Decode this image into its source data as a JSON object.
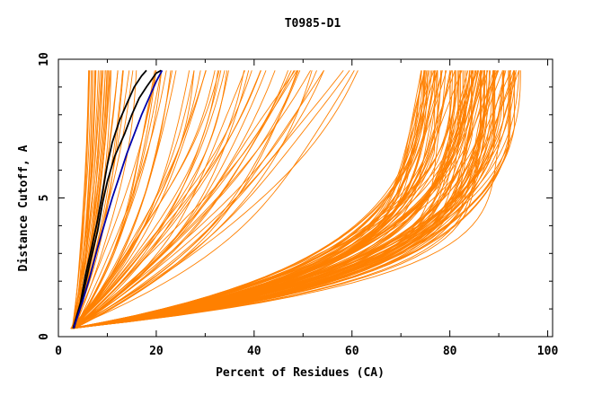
{
  "chart_data": {
    "type": "line",
    "title": "T0985-D1",
    "xlabel": "Percent of Residues (CA)",
    "ylabel": "Distance Cutoff, A",
    "xlim": [
      0,
      101
    ],
    "ylim": [
      0,
      10
    ],
    "xticks": [
      0,
      20,
      40,
      60,
      80,
      100
    ],
    "yticks": [
      0,
      5,
      10
    ],
    "colors": {
      "orange": "#ff8000",
      "black": "#000000",
      "blue": "#0000aa"
    },
    "series_groups": [
      {
        "name": "steep-cluster",
        "color": "orange",
        "count": 22,
        "start_x": [
          2.8,
          3.6
        ],
        "end_x": [
          6,
          11
        ],
        "curve": [
          1.2,
          2.0
        ]
      },
      {
        "name": "mid-fan",
        "color": "orange",
        "count": 55,
        "start_x": [
          2.5,
          3.5
        ],
        "end_x": [
          12,
          62
        ],
        "curve": [
          0.8,
          2.0
        ]
      },
      {
        "name": "flat-bundle",
        "color": "orange",
        "count": 110,
        "start_x": [
          2.5,
          3.2
        ],
        "end_x": [
          74,
          95
        ],
        "curve": [
          3.5,
          5.5
        ]
      }
    ],
    "highlighted_series": [
      {
        "name": "black-1",
        "color": "black",
        "x": [
          3.0,
          4.5,
          5.5,
          6.8,
          8.0,
          9.0,
          10.0,
          11.0,
          12.5,
          14.0,
          15.5,
          17.0,
          18.0
        ],
        "y": [
          0.3,
          1.2,
          2.2,
          3.2,
          4.2,
          5.2,
          6.2,
          7.0,
          7.8,
          8.4,
          9.0,
          9.4,
          9.6
        ]
      },
      {
        "name": "black-2",
        "color": "black",
        "x": [
          3.2,
          5.0,
          6.5,
          8.0,
          9.0,
          10.0,
          11.5,
          13.5,
          15.0,
          16.5,
          18.0,
          20.0,
          21.0
        ],
        "y": [
          0.3,
          1.5,
          2.7,
          3.8,
          4.8,
          5.6,
          6.5,
          7.3,
          8.0,
          8.6,
          9.0,
          9.5,
          9.6
        ]
      },
      {
        "name": "blue-1",
        "color": "blue",
        "x": [
          3.1,
          5.0,
          6.5,
          8.0,
          9.5,
          11.0,
          12.5,
          14.0,
          15.5,
          17.0,
          18.5,
          20.0,
          21.2
        ],
        "y": [
          0.3,
          1.3,
          2.2,
          3.2,
          4.1,
          5.0,
          5.8,
          6.6,
          7.3,
          8.0,
          8.6,
          9.2,
          9.6
        ]
      }
    ]
  }
}
